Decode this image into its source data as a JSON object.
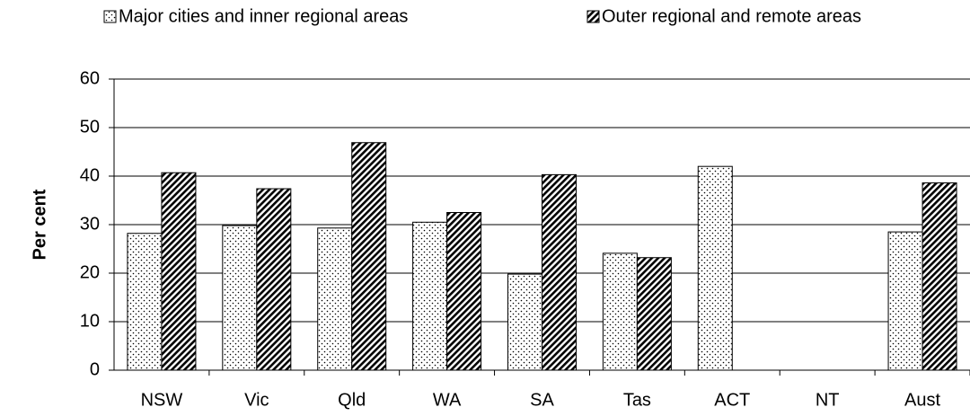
{
  "chart_data": {
    "type": "bar",
    "y_label": "Per cent",
    "categories": [
      "NSW",
      "Vic",
      "Qld",
      "WA",
      "SA",
      "Tas",
      "ACT",
      "NT",
      "Aust"
    ],
    "series": [
      {
        "name": "Major cities and inner regional areas",
        "pattern": "dots",
        "color": "#000000",
        "values": [
          28.2,
          29.8,
          29.3,
          30.5,
          19.8,
          24.1,
          42.0,
          null,
          28.5
        ]
      },
      {
        "name": "Outer regional and remote areas",
        "pattern": "hatch",
        "color": "#000000",
        "values": [
          40.7,
          37.4,
          46.9,
          32.5,
          40.3,
          23.2,
          null,
          null,
          38.6
        ]
      }
    ],
    "ylim": [
      0,
      60
    ],
    "yticks": [
      0,
      10,
      20,
      30,
      40,
      50,
      60
    ],
    "grid": true,
    "legend": "top"
  }
}
